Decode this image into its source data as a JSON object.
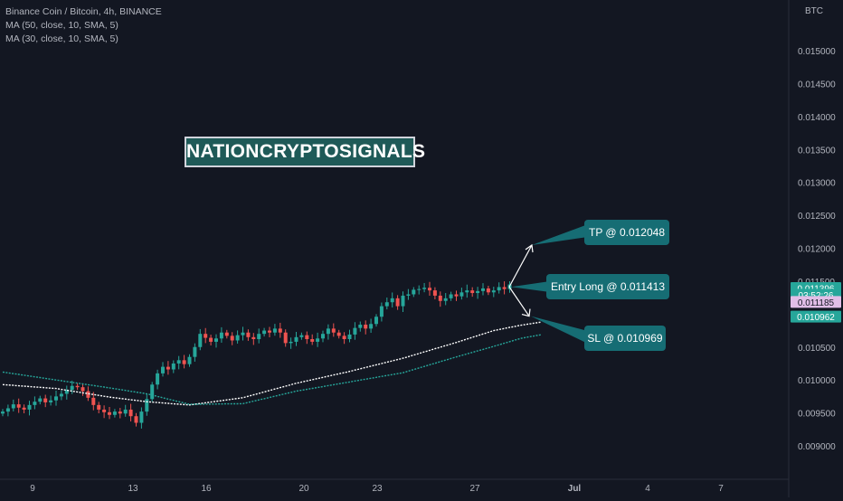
{
  "legend": {
    "title": "Binance Coin / Bitcoin, 4h, BINANCE",
    "ma1": "MA (50, close, 10, SMA, 5)",
    "ma2": "MA (30, close, 10, SMA, 5)"
  },
  "currency": "BTC",
  "watermark": "NATIONCRYPTOSIGNALS",
  "callouts": {
    "tp": "TP @ 0.012048",
    "entry": "Entry Long @ 0.011413",
    "sl": "SL @ 0.010969"
  },
  "colors": {
    "background": "#131722",
    "up": "#26a69a",
    "down": "#ef5350",
    "ma50": "#ffffff",
    "ma30": "#26a69a",
    "callout": "#166d74"
  },
  "chart_data": {
    "type": "candlestick",
    "title": "Binance Coin / Bitcoin, 4h, BINANCE",
    "y_axis": {
      "ticks": [
        "0.015000",
        "0.014500",
        "0.014000",
        "0.013500",
        "0.013000",
        "0.012500",
        "0.012000",
        "0.011500",
        "0.011000",
        "0.010500",
        "0.010000",
        "0.009500",
        "0.009000"
      ],
      "range": [
        0.0088,
        0.01555
      ]
    },
    "x_axis": {
      "ticks": [
        "9",
        "13",
        "16",
        "20",
        "23",
        "27",
        "Jul",
        "4",
        "7"
      ]
    },
    "price_labels": [
      {
        "text": "0.011396",
        "value": 0.011396,
        "color": "#26a69a"
      },
      {
        "text": "03:52:26",
        "value": 0.011295,
        "color": "#26a69a"
      },
      {
        "text": "0.011185",
        "value": 0.011185,
        "color": "#e1bee7"
      },
      {
        "text": "0.010962",
        "value": 0.010962,
        "color": "#26a69a"
      }
    ],
    "close_series": [
      0.00952,
      0.00957,
      0.00963,
      0.00958,
      0.00955,
      0.00962,
      0.00967,
      0.00972,
      0.00966,
      0.00969,
      0.00975,
      0.00979,
      0.00985,
      0.00991,
      0.00989,
      0.00983,
      0.00973,
      0.00962,
      0.00955,
      0.00951,
      0.00947,
      0.00952,
      0.00949,
      0.00955,
      0.00945,
      0.00935,
      0.00952,
      0.00971,
      0.00993,
      0.0101,
      0.0102,
      0.01016,
      0.01025,
      0.0103,
      0.01024,
      0.01035,
      0.0105,
      0.0107,
      0.01064,
      0.01058,
      0.01063,
      0.01072,
      0.01067,
      0.0106,
      0.01068,
      0.01072,
      0.01065,
      0.01062,
      0.0107,
      0.01075,
      0.01072,
      0.01078,
      0.01072,
      0.01056,
      0.01058,
      0.01065,
      0.01068,
      0.01062,
      0.01058,
      0.01063,
      0.0107,
      0.01078,
      0.01072,
      0.01067,
      0.01062,
      0.01069,
      0.01079,
      0.01084,
      0.01078,
      0.01085,
      0.01096,
      0.01112,
      0.01118,
      0.01124,
      0.01112,
      0.01128,
      0.0113,
      0.01137,
      0.01138,
      0.0114,
      0.01136,
      0.01128,
      0.0112,
      0.01124,
      0.0113,
      0.01127,
      0.01133,
      0.01136,
      0.01132,
      0.01135,
      0.01139,
      0.01133,
      0.01136,
      0.01141,
      0.01138,
      0.01145
    ],
    "series": [
      {
        "name": "MA (50, close, 10, SMA, 5)",
        "color": "#ffffff",
        "points": [
          [
            0,
            0.00993
          ],
          [
            10,
            0.00987
          ],
          [
            20,
            0.00974
          ],
          [
            27,
            0.00967
          ],
          [
            35,
            0.00962
          ],
          [
            45,
            0.00973
          ],
          [
            55,
            0.00995
          ],
          [
            65,
            0.01013
          ],
          [
            75,
            0.01033
          ],
          [
            85,
            0.01057
          ],
          [
            92,
            0.01075
          ],
          [
            97,
            0.01083
          ],
          [
            101,
            0.01088
          ]
        ]
      },
      {
        "name": "MA (30, close, 10, SMA, 5)",
        "color": "#26a69a",
        "points": [
          [
            0,
            0.01012
          ],
          [
            10,
            0.01
          ],
          [
            20,
            0.00988
          ],
          [
            27,
            0.00979
          ],
          [
            35,
            0.00963
          ],
          [
            45,
            0.00964
          ],
          [
            55,
            0.00983
          ],
          [
            65,
            0.00997
          ],
          [
            75,
            0.01011
          ],
          [
            85,
            0.01035
          ],
          [
            92,
            0.01051
          ],
          [
            97,
            0.01063
          ],
          [
            101,
            0.01069
          ]
        ]
      }
    ],
    "annotations": [
      {
        "label": "TP @ 0.012048",
        "value": 0.012048
      },
      {
        "label": "Entry Long @ 0.011413",
        "value": 0.011413
      },
      {
        "label": "SL @ 0.010969",
        "value": 0.010969
      }
    ]
  }
}
